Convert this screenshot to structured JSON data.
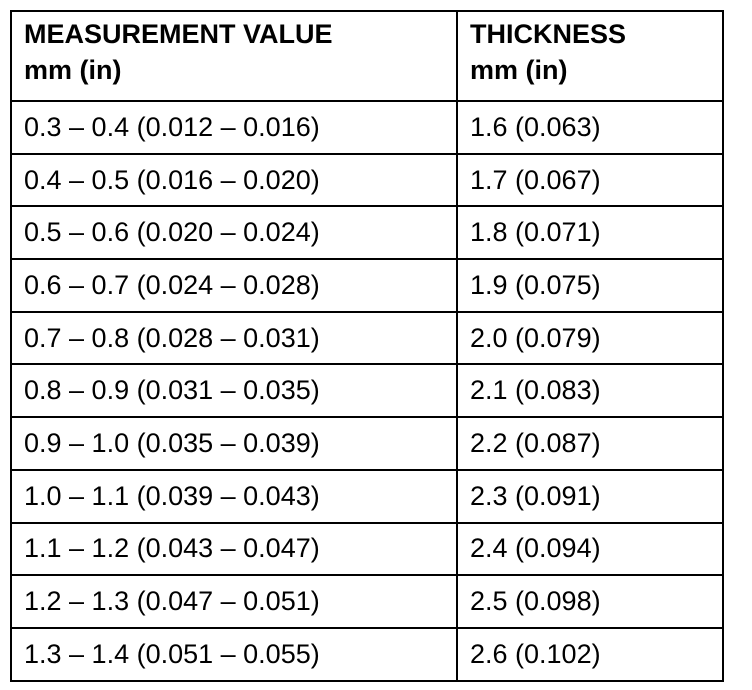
{
  "table": {
    "headers": [
      {
        "line1": "MEASUREMENT VALUE",
        "line2": "mm (in)"
      },
      {
        "line1": "THICKNESS",
        "line2": "mm (in)"
      }
    ],
    "rows": [
      {
        "measurement": "0.3 – 0.4 (0.012 – 0.016)",
        "thickness": "1.6 (0.063)"
      },
      {
        "measurement": "0.4 – 0.5 (0.016 – 0.020)",
        "thickness": "1.7 (0.067)"
      },
      {
        "measurement": "0.5 – 0.6 (0.020 – 0.024)",
        "thickness": "1.8 (0.071)"
      },
      {
        "measurement": "0.6 – 0.7 (0.024 – 0.028)",
        "thickness": "1.9 (0.075)"
      },
      {
        "measurement": "0.7 – 0.8 (0.028 – 0.031)",
        "thickness": "2.0 (0.079)"
      },
      {
        "measurement": "0.8 – 0.9 (0.031 – 0.035)",
        "thickness": "2.1 (0.083)"
      },
      {
        "measurement": "0.9 – 1.0 (0.035 – 0.039)",
        "thickness": "2.2 (0.087)"
      },
      {
        "measurement": "1.0 – 1.1 (0.039 – 0.043)",
        "thickness": "2.3 (0.091)"
      },
      {
        "measurement": "1.1 – 1.2 (0.043 – 0.047)",
        "thickness": "2.4 (0.094)"
      },
      {
        "measurement": "1.2 – 1.3 (0.047 – 0.051)",
        "thickness": "2.5 (0.098)"
      },
      {
        "measurement": "1.3 – 1.4 (0.051 – 0.055)",
        "thickness": "2.6 (0.102)"
      }
    ]
  }
}
